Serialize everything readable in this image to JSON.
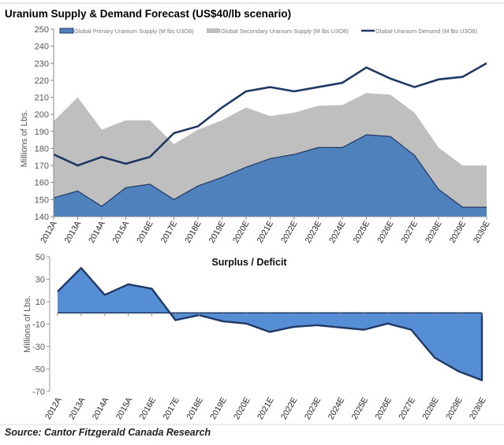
{
  "chart_data": [
    {
      "type": "area",
      "title": "Uranium Supply & Demand Forecast (US$40/lb scenario)",
      "ylabel": "Millions of Lbs.",
      "xlabel": "",
      "ylim": [
        140,
        250
      ],
      "yticks": [
        140,
        150,
        160,
        170,
        180,
        190,
        200,
        210,
        220,
        230,
        240,
        250
      ],
      "legend_position": "top",
      "categories": [
        "2012A",
        "2013A",
        "2014A",
        "2015A",
        "2016E",
        "2017E",
        "2018E",
        "2019E",
        "2020E",
        "2021E",
        "2022E",
        "2023E",
        "2024E",
        "2025E",
        "2026E",
        "2027E",
        "2028E",
        "2029E",
        "2030E"
      ],
      "series": [
        {
          "name": "Global Primary Uranium Supply (M lbs U3O8)",
          "kind": "stacked-area",
          "color": "#4f81bd",
          "values": [
            151,
            155,
            146,
            157,
            159,
            150,
            158,
            163,
            169,
            174,
            176.5,
            180.5,
            180.5,
            188,
            187,
            176,
            156,
            145.5,
            145.5
          ]
        },
        {
          "name": "Global Secondary Uranium Supply (M lbs U3O8)",
          "kind": "stacked-area",
          "color": "#bfbfbf",
          "values": [
            45,
            55,
            45,
            39.5,
            37.5,
            32.5,
            33,
            33.5,
            35,
            25,
            24.5,
            24.5,
            25,
            24.5,
            24.5,
            25,
            24.5,
            24.5,
            24.5
          ]
        },
        {
          "name": "Global Uranium Demand (M lbs U3O8)",
          "kind": "line",
          "color": "#1f3864",
          "values": [
            176.5,
            170,
            175,
            171,
            175,
            189,
            193,
            204,
            213.5,
            216,
            213.5,
            216,
            218.5,
            227.5,
            221,
            216,
            220.5,
            222,
            230
          ]
        }
      ]
    },
    {
      "type": "area",
      "title": "Surplus / Deficit",
      "ylabel": "Millions of Lbs.",
      "ylim": [
        -70,
        50
      ],
      "yticks": [
        50,
        30,
        10,
        -10,
        -30,
        -50,
        -70
      ],
      "categories": [
        "2012A",
        "2013A",
        "2014A",
        "2015A",
        "2016E",
        "2017E",
        "2018E",
        "2019E",
        "2020E",
        "2021E",
        "2022E",
        "2023E",
        "2024E",
        "2025E",
        "2026E",
        "2027E",
        "2028E",
        "2029E",
        "2030E"
      ],
      "series": [
        {
          "fill": "#558ed5",
          "stroke": "#1f3864",
          "values": [
            19,
            40,
            16,
            25.5,
            21.5,
            -6.5,
            -2,
            -7.5,
            -9.5,
            -17,
            -12.5,
            -11,
            -13,
            -15,
            -9.5,
            -15,
            -40,
            -52,
            -60
          ]
        }
      ]
    }
  ],
  "source": "Source: Cantor Fitzgerald Canada Research"
}
